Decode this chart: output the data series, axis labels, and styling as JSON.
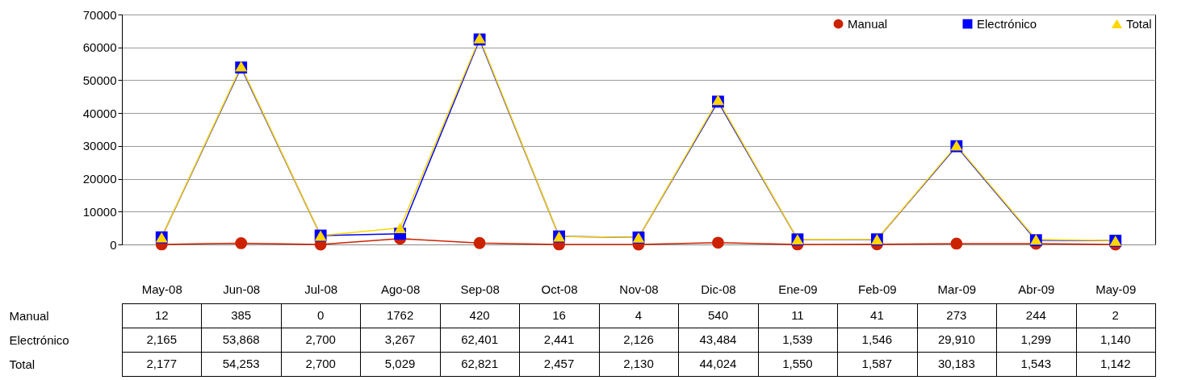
{
  "chart_data": {
    "type": "line",
    "categories": [
      "May-08",
      "Jun-08",
      "Jul-08",
      "Ago-08",
      "Sep-08",
      "Oct-08",
      "Nov-08",
      "Dic-08",
      "Ene-09",
      "Feb-09",
      "Mar-09",
      "Abr-09",
      "May-09"
    ],
    "series": [
      {
        "name": "Manual",
        "color": "#cc2200",
        "marker": "circle",
        "values": [
          12,
          385,
          0,
          1762,
          420,
          16,
          4,
          540,
          11,
          41,
          273,
          244,
          2
        ],
        "value_labels": [
          "12",
          "385",
          "0",
          "1762",
          "420",
          "16",
          "4",
          "540",
          "11",
          "41",
          "273",
          "244",
          "2"
        ]
      },
      {
        "name": "Electrónico",
        "color": "#0000ff",
        "marker": "square",
        "values": [
          2165,
          53868,
          2700,
          3267,
          62401,
          2441,
          2126,
          43484,
          1539,
          1546,
          29910,
          1299,
          1140
        ],
        "value_labels": [
          "2,165",
          "53,868",
          "2,700",
          "3,267",
          "62,401",
          "2,441",
          "2,126",
          "43,484",
          "1,539",
          "1,546",
          "29,910",
          "1,299",
          "1,140"
        ]
      },
      {
        "name": "Total",
        "color": "#ffd700",
        "marker": "triangle",
        "values": [
          2177,
          54253,
          2700,
          5029,
          62821,
          2457,
          2130,
          44024,
          1550,
          1587,
          30183,
          1543,
          1142
        ],
        "value_labels": [
          "2,177",
          "54,253",
          "2,700",
          "5,029",
          "62,821",
          "2,457",
          "2,130",
          "44,024",
          "1,550",
          "1,587",
          "30,183",
          "1,543",
          "1,142"
        ]
      }
    ],
    "ylim": [
      0,
      70000
    ],
    "yticks": [
      0,
      10000,
      20000,
      30000,
      40000,
      50000,
      60000,
      70000
    ],
    "grid": "y",
    "legend": "top right",
    "data_labels": true
  }
}
